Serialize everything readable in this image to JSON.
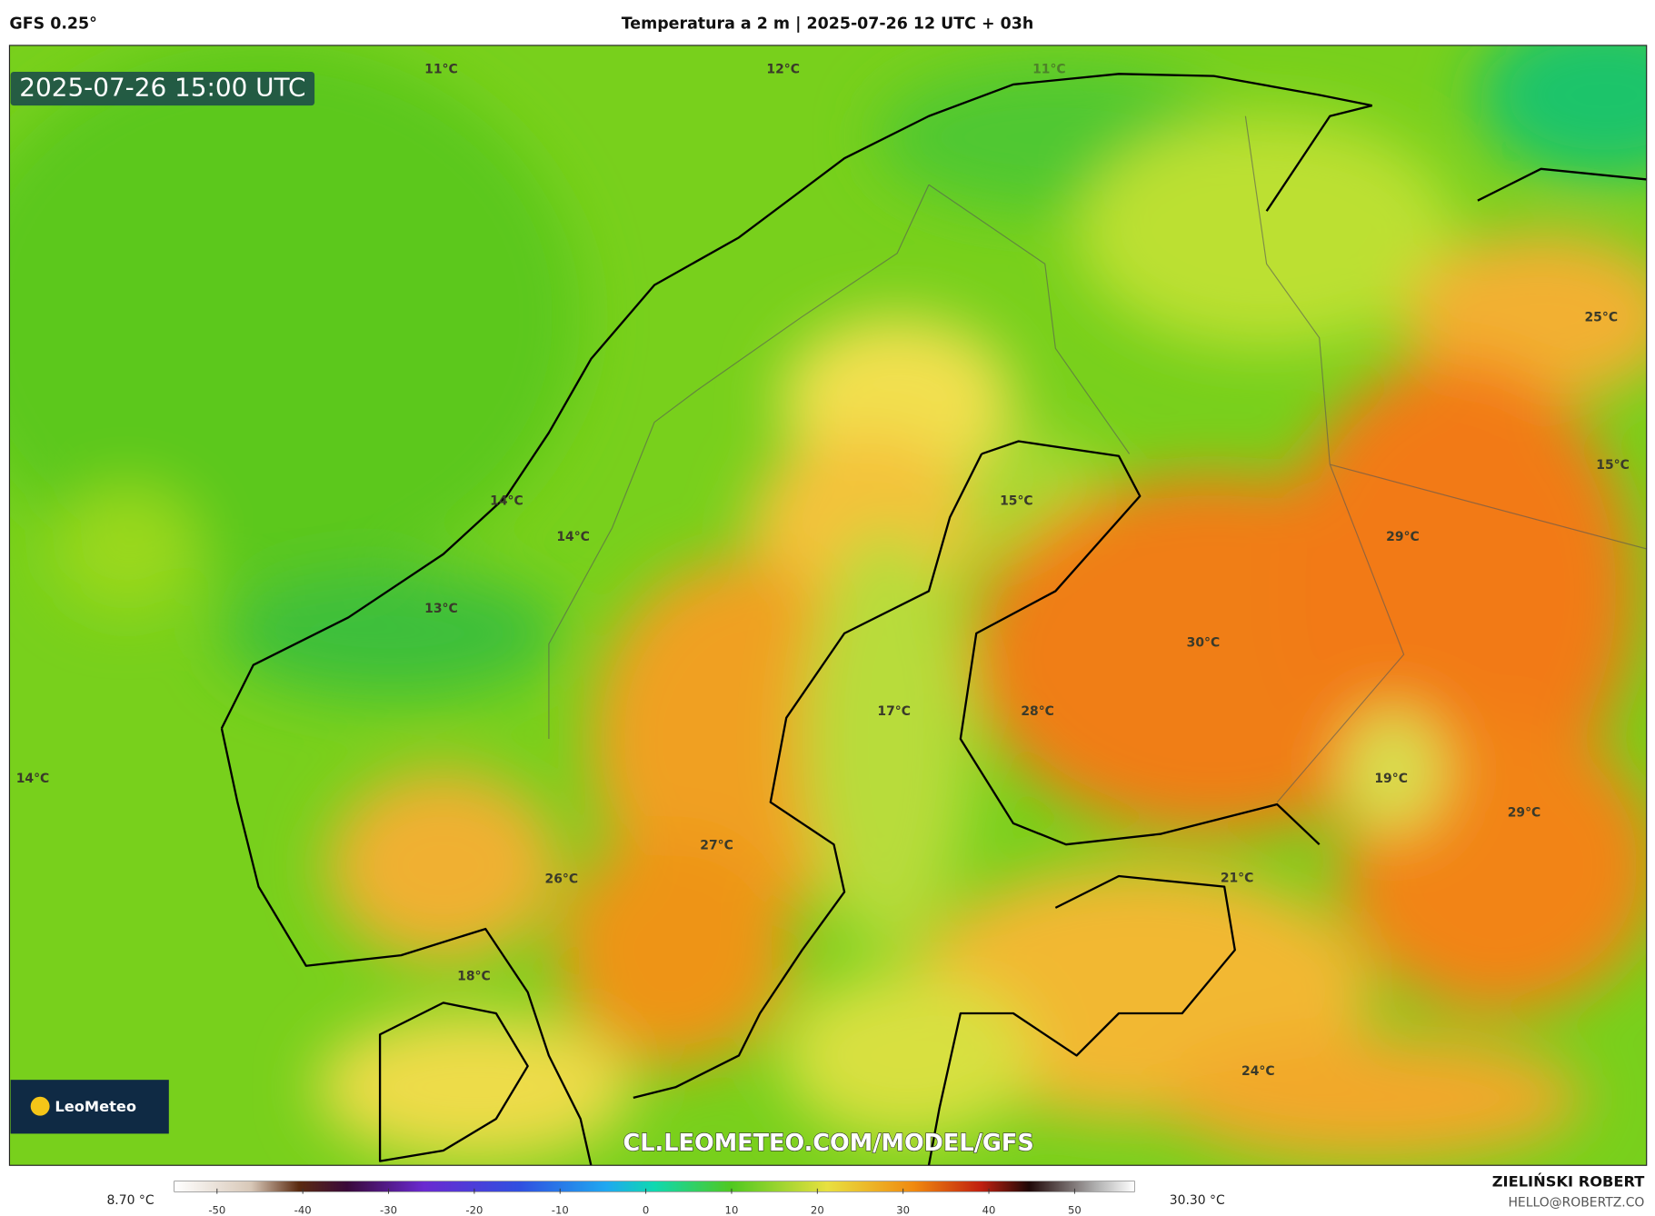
{
  "header": {
    "model": "GFS 0.25°",
    "title": "Temperatura a 2 m | 2025-07-26 12 UTC + 03h"
  },
  "map": {
    "valid_time": "2025-07-26 15:00 UTC",
    "labels": [
      "11°C",
      "12°C",
      "11°C",
      "25°C",
      "15°C",
      "15°C",
      "14°C",
      "14°C",
      "29°C",
      "13°C",
      "30°C",
      "17°C",
      "28°C",
      "19°C",
      "14°C",
      "29°C",
      "27°C",
      "26°C",
      "21°C",
      "18°C",
      "24°C"
    ],
    "watermark": "CL.LEOMETEO.COM/MODEL/GFS",
    "logo": "LeoMeteo"
  },
  "colorbar": {
    "min_label": "8.70 °C",
    "max_label": "30.30 °C",
    "range": [
      -55,
      57
    ],
    "ticks": [
      -50,
      -40,
      -30,
      -20,
      -10,
      0,
      10,
      20,
      30,
      40,
      50
    ]
  },
  "credits": {
    "author": "ZIELIŃSKI ROBERT",
    "email": "HELLO@ROBERTZ.CO"
  }
}
